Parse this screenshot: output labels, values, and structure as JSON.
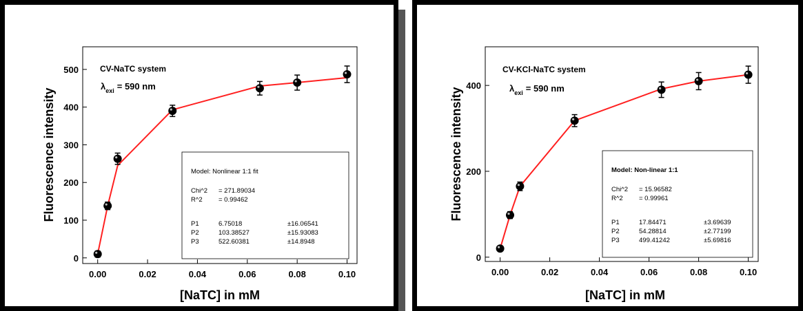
{
  "chart_data": [
    {
      "type": "scatter",
      "title": "CV-NaTC system",
      "subtitle_symbol": "λ",
      "subtitle_sub": "exi",
      "subtitle_value": "= 590 nm",
      "xlabel": "[NaTC] in mM",
      "ylabel": "Fluorescence intensity",
      "xlim": [
        -0.006,
        0.104
      ],
      "ylim": [
        -15,
        560
      ],
      "xticks": [
        "0.00",
        "0.02",
        "0.04",
        "0.06",
        "0.08",
        "0.10"
      ],
      "xtick_values": [
        0.0,
        0.02,
        0.04,
        0.06,
        0.08,
        0.1
      ],
      "yticks": [
        "0",
        "100",
        "200",
        "300",
        "400",
        "500"
      ],
      "ytick_values": [
        0,
        100,
        200,
        300,
        400,
        500
      ],
      "x": [
        0.0,
        0.004,
        0.008,
        0.03,
        0.065,
        0.08,
        0.1
      ],
      "y": [
        10,
        138,
        263,
        390,
        450,
        465,
        487
      ],
      "yerr": [
        8,
        10,
        15,
        15,
        18,
        20,
        22
      ],
      "fit_x": [
        0.0,
        0.004,
        0.008,
        0.03,
        0.065,
        0.08,
        0.1
      ],
      "fit_y": [
        10,
        138,
        245,
        393,
        456,
        465,
        478
      ],
      "colors": {
        "fit": "#ff2020",
        "marker": "#000000"
      },
      "legend": {
        "model": "Model: Nonlinear 1:1 fit",
        "chi_label": "Chi^2",
        "chi_value": "= 271.89034",
        "r_label": "R^2",
        "r_value": "= 0.99462",
        "params": [
          {
            "name": "P1",
            "value": "6.75018",
            "err": "±16.06541"
          },
          {
            "name": "P2",
            "value": "103.38527",
            "err": "±15.93083"
          },
          {
            "name": "P3",
            "value": "522.60381",
            "err": "±14.8948"
          }
        ]
      }
    },
    {
      "type": "scatter",
      "title": "CV-KCl-NaTC system",
      "subtitle_symbol": "λ",
      "subtitle_sub": "exi",
      "subtitle_value": "= 590 nm",
      "xlabel": "[NaTC] in mM",
      "ylabel": "Fluorescence intensity",
      "xlim": [
        -0.006,
        0.104
      ],
      "ylim": [
        -10,
        490
      ],
      "xticks": [
        "0.00",
        "0.02",
        "0.04",
        "0.06",
        "0.08",
        "0.10"
      ],
      "xtick_values": [
        0.0,
        0.02,
        0.04,
        0.06,
        0.08,
        0.1
      ],
      "yticks": [
        "0",
        "200",
        "400"
      ],
      "ytick_values": [
        0,
        200,
        400
      ],
      "x": [
        0.0,
        0.004,
        0.008,
        0.03,
        0.065,
        0.08,
        0.1
      ],
      "y": [
        20,
        98,
        165,
        318,
        390,
        410,
        425
      ],
      "yerr": [
        5,
        8,
        10,
        14,
        18,
        20,
        20
      ],
      "fit_x": [
        0.0,
        0.004,
        0.008,
        0.03,
        0.065,
        0.08,
        0.1
      ],
      "fit_y": [
        20,
        98,
        165,
        318,
        392,
        410,
        425
      ],
      "colors": {
        "fit": "#ff2020",
        "marker": "#000000"
      },
      "legend": {
        "model": "Model: Non-linear 1:1",
        "chi_label": "Chi^2",
        "chi_value": "= 15.96582",
        "r_label": "R^2",
        "r_value": "= 0.99961",
        "params": [
          {
            "name": "P1",
            "value": "17.84471",
            "err": "±3.69639"
          },
          {
            "name": "P2",
            "value": "54.28814",
            "err": "±2.77199"
          },
          {
            "name": "P3",
            "value": "499.41242",
            "err": "±5.69816"
          }
        ]
      }
    }
  ]
}
